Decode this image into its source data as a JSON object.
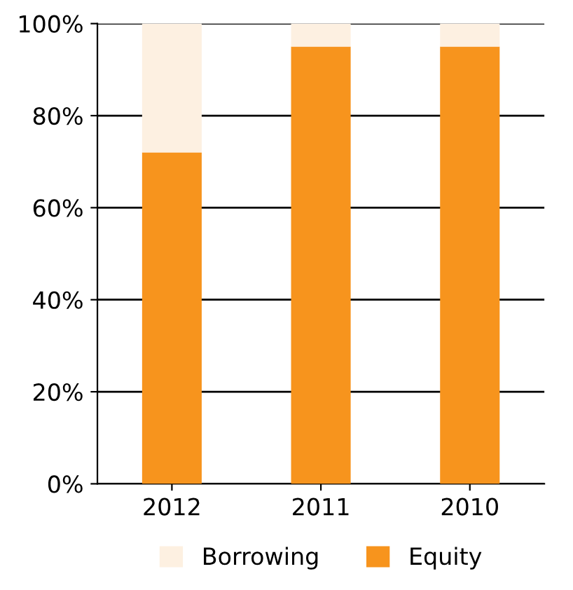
{
  "chart_data": {
    "type": "bar",
    "stacked": true,
    "categories": [
      "2012",
      "2011",
      "2010"
    ],
    "series": [
      {
        "name": "Equity",
        "color": "#f7941d",
        "values": [
          72,
          95,
          95
        ]
      },
      {
        "name": "Borrowing",
        "color": "#fdf0e1",
        "values": [
          28,
          5,
          5
        ]
      }
    ],
    "ylim": [
      0,
      100
    ],
    "yticks": [
      {
        "value": 0,
        "label": "0%"
      },
      {
        "value": 20,
        "label": "20%"
      },
      {
        "value": 40,
        "label": "40%"
      },
      {
        "value": 60,
        "label": "60%"
      },
      {
        "value": 80,
        "label": "80%"
      },
      {
        "value": 100,
        "label": "100%"
      }
    ],
    "grid": "y",
    "legend": "bottom"
  }
}
